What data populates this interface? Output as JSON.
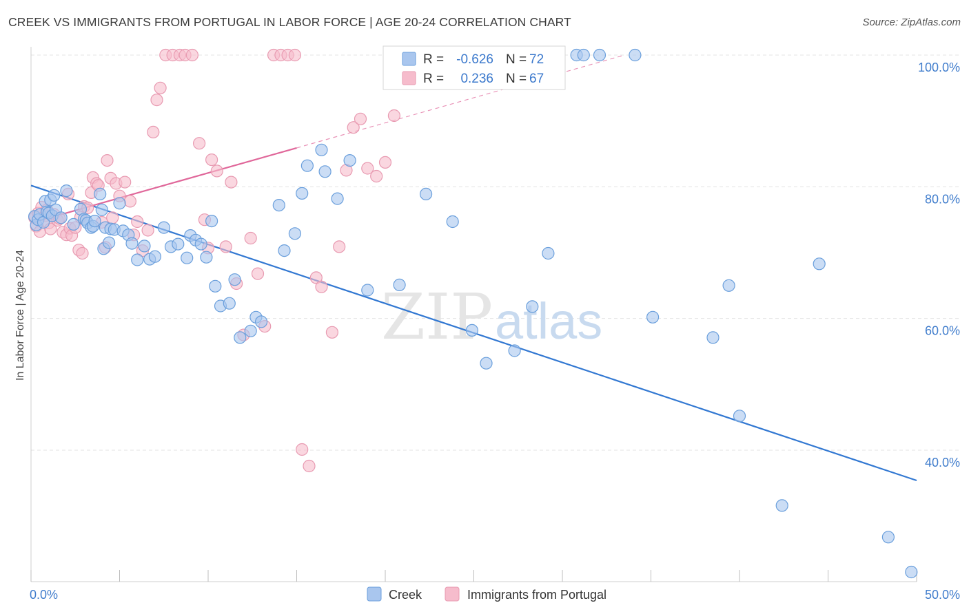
{
  "header": {
    "title": "CREEK VS IMMIGRANTS FROM PORTUGAL IN LABOR FORCE | AGE 20-24 CORRELATION CHART",
    "source": "Source: ZipAtlas.com"
  },
  "watermark": {
    "zip": "ZIP",
    "atlas": "atlas"
  },
  "colors": {
    "creek_fill": "#a9c6ee",
    "creek_stroke": "#6a9fdc",
    "creek_line": "#3278d2",
    "portugal_fill": "#f6bccc",
    "portugal_stroke": "#e89ab1",
    "portugal_line": "#e0679a",
    "tick_label": "#3f7ccc",
    "grid": "#e3e3e3"
  },
  "legend": {
    "rows": [
      {
        "r_label": "R =",
        "r_value": "-0.626",
        "n_label": "N =",
        "n_value": "72"
      },
      {
        "r_label": "R =",
        "r_value": "0.236",
        "n_label": "N =",
        "n_value": "67"
      }
    ]
  },
  "chart_data": {
    "type": "scatter",
    "title": "CREEK VS IMMIGRANTS FROM PORTUGAL IN LABOR FORCE | AGE 20-24 CORRELATION CHART",
    "xlabel": "",
    "ylabel": "In Labor Force | Age 20-24",
    "xlim": [
      0,
      50
    ],
    "ylim": [
      20,
      102
    ],
    "x_tick_labels": [
      "0.0%",
      "50.0%"
    ],
    "y_ticks": [
      40,
      60,
      80,
      100
    ],
    "y_tick_labels": [
      "40.0%",
      "60.0%",
      "80.0%",
      "100.0%"
    ],
    "grid": true,
    "legend_position": "top-center",
    "series": [
      {
        "name": "Creek",
        "color": "#a9c6ee",
        "R": -0.626,
        "N": 72,
        "trend": {
          "x": [
            0,
            50
          ],
          "y": [
            80.2,
            35.4
          ]
        },
        "points": [
          [
            0.2,
            75.5
          ],
          [
            0.3,
            74.2
          ],
          [
            0.4,
            75.0
          ],
          [
            0.5,
            75.8
          ],
          [
            0.7,
            74.6
          ],
          [
            0.8,
            77.8
          ],
          [
            0.9,
            76.2
          ],
          [
            1.0,
            76.0
          ],
          [
            1.1,
            78.0
          ],
          [
            1.2,
            75.6
          ],
          [
            1.3,
            78.7
          ],
          [
            1.4,
            76.5
          ],
          [
            1.7,
            75.3
          ],
          [
            2.0,
            79.4
          ],
          [
            2.4,
            74.3
          ],
          [
            2.8,
            76.6
          ],
          [
            3.0,
            75.1
          ],
          [
            3.1,
            74.9
          ],
          [
            3.2,
            74.5
          ],
          [
            3.4,
            73.8
          ],
          [
            3.5,
            74.0
          ],
          [
            3.6,
            74.8
          ],
          [
            3.9,
            78.9
          ],
          [
            4.0,
            76.5
          ],
          [
            4.1,
            70.6
          ],
          [
            4.2,
            73.8
          ],
          [
            4.4,
            71.5
          ],
          [
            4.5,
            73.6
          ],
          [
            4.7,
            73.5
          ],
          [
            5.0,
            77.5
          ],
          [
            5.2,
            73.3
          ],
          [
            5.5,
            72.7
          ],
          [
            5.7,
            71.4
          ],
          [
            6.0,
            68.9
          ],
          [
            6.4,
            71.0
          ],
          [
            6.7,
            69.0
          ],
          [
            7.0,
            69.4
          ],
          [
            7.5,
            73.8
          ],
          [
            7.9,
            70.9
          ],
          [
            8.3,
            71.3
          ],
          [
            8.8,
            69.2
          ],
          [
            9.0,
            72.6
          ],
          [
            9.3,
            71.9
          ],
          [
            9.6,
            71.3
          ],
          [
            9.9,
            69.3
          ],
          [
            10.2,
            74.8
          ],
          [
            10.4,
            64.9
          ],
          [
            10.7,
            61.9
          ],
          [
            11.2,
            62.3
          ],
          [
            11.5,
            65.9
          ],
          [
            11.8,
            57.1
          ],
          [
            12.4,
            58.1
          ],
          [
            12.7,
            60.2
          ],
          [
            13.0,
            59.5
          ],
          [
            14.0,
            77.2
          ],
          [
            14.3,
            70.3
          ],
          [
            14.9,
            72.9
          ],
          [
            15.3,
            79.0
          ],
          [
            15.6,
            83.2
          ],
          [
            16.4,
            85.6
          ],
          [
            16.6,
            82.3
          ],
          [
            17.3,
            78.2
          ],
          [
            18.0,
            84.0
          ],
          [
            19.0,
            64.3
          ],
          [
            20.8,
            65.1
          ],
          [
            22.3,
            78.9
          ],
          [
            23.8,
            74.7
          ],
          [
            24.9,
            58.2
          ],
          [
            25.7,
            53.2
          ],
          [
            27.3,
            55.1
          ],
          [
            28.3,
            61.8
          ],
          [
            29.2,
            69.9
          ],
          [
            30.8,
            100.0
          ],
          [
            31.2,
            100.0
          ],
          [
            32.1,
            100.0
          ],
          [
            34.1,
            100.0
          ],
          [
            35.1,
            60.2
          ],
          [
            38.5,
            57.1
          ],
          [
            39.4,
            65.0
          ],
          [
            40.0,
            45.2
          ],
          [
            42.4,
            31.6
          ],
          [
            44.5,
            68.3
          ],
          [
            48.4,
            26.8
          ],
          [
            49.7,
            21.5
          ]
        ]
      },
      {
        "name": "Immigrants from Portugal",
        "color": "#f6bccc",
        "R": 0.236,
        "N": 67,
        "trend": {
          "x": [
            0,
            15
          ],
          "y": [
            74.5,
            85.9
          ]
        },
        "trend_extension": {
          "x": [
            15,
            33.5
          ],
          "y": [
            85.9,
            100.0
          ]
        },
        "points": [
          [
            0.2,
            75.3
          ],
          [
            0.3,
            74.0
          ],
          [
            0.4,
            76.0
          ],
          [
            0.5,
            73.2
          ],
          [
            0.6,
            76.9
          ],
          [
            0.8,
            75.6
          ],
          [
            0.9,
            76.5
          ],
          [
            1.0,
            74.5
          ],
          [
            1.1,
            73.6
          ],
          [
            1.3,
            75.8
          ],
          [
            1.5,
            74.9
          ],
          [
            1.6,
            75.2
          ],
          [
            1.8,
            73.1
          ],
          [
            2.0,
            72.7
          ],
          [
            2.1,
            78.9
          ],
          [
            2.2,
            73.7
          ],
          [
            2.3,
            72.6
          ],
          [
            2.5,
            73.8
          ],
          [
            2.7,
            70.4
          ],
          [
            2.8,
            75.4
          ],
          [
            2.9,
            69.9
          ],
          [
            3.0,
            77.0
          ],
          [
            3.2,
            76.8
          ],
          [
            3.4,
            79.1
          ],
          [
            3.5,
            81.4
          ],
          [
            3.7,
            80.5
          ],
          [
            3.8,
            80.2
          ],
          [
            4.0,
            74.6
          ],
          [
            4.2,
            70.8
          ],
          [
            4.3,
            84.0
          ],
          [
            4.5,
            81.3
          ],
          [
            4.6,
            75.3
          ],
          [
            4.8,
            80.5
          ],
          [
            5.0,
            78.6
          ],
          [
            5.3,
            80.7
          ],
          [
            5.6,
            77.8
          ],
          [
            5.8,
            72.7
          ],
          [
            6.0,
            74.7
          ],
          [
            6.3,
            70.3
          ],
          [
            6.6,
            73.4
          ],
          [
            6.9,
            88.3
          ],
          [
            7.1,
            93.2
          ],
          [
            7.3,
            95.0
          ],
          [
            7.6,
            100.0
          ],
          [
            8.0,
            100.0
          ],
          [
            8.4,
            100.0
          ],
          [
            8.7,
            100.0
          ],
          [
            9.1,
            100.0
          ],
          [
            9.5,
            86.6
          ],
          [
            9.8,
            75.0
          ],
          [
            10.0,
            70.7
          ],
          [
            10.2,
            84.1
          ],
          [
            10.5,
            82.4
          ],
          [
            11.0,
            70.9
          ],
          [
            11.3,
            80.7
          ],
          [
            11.6,
            65.3
          ],
          [
            12.0,
            57.5
          ],
          [
            12.4,
            72.2
          ],
          [
            12.8,
            66.8
          ],
          [
            13.2,
            58.8
          ],
          [
            13.7,
            100.0
          ],
          [
            14.1,
            100.0
          ],
          [
            14.5,
            100.0
          ],
          [
            14.9,
            100.0
          ],
          [
            15.3,
            40.1
          ],
          [
            15.7,
            37.6
          ],
          [
            16.1,
            66.2
          ],
          [
            16.4,
            64.8
          ],
          [
            17.0,
            57.9
          ],
          [
            17.4,
            70.9
          ],
          [
            17.8,
            82.5
          ],
          [
            18.2,
            89.0
          ],
          [
            18.6,
            90.3
          ],
          [
            19.0,
            82.8
          ],
          [
            19.5,
            81.6
          ],
          [
            20.0,
            83.7
          ],
          [
            20.5,
            90.8
          ],
          [
            21.0,
            100.0
          ],
          [
            21.5,
            100.0
          ],
          [
            22.0,
            100.0
          ],
          [
            22.5,
            100.0
          ]
        ]
      }
    ]
  },
  "bottom_legend": [
    {
      "label": "Creek"
    },
    {
      "label": "Immigrants from Portugal"
    }
  ]
}
